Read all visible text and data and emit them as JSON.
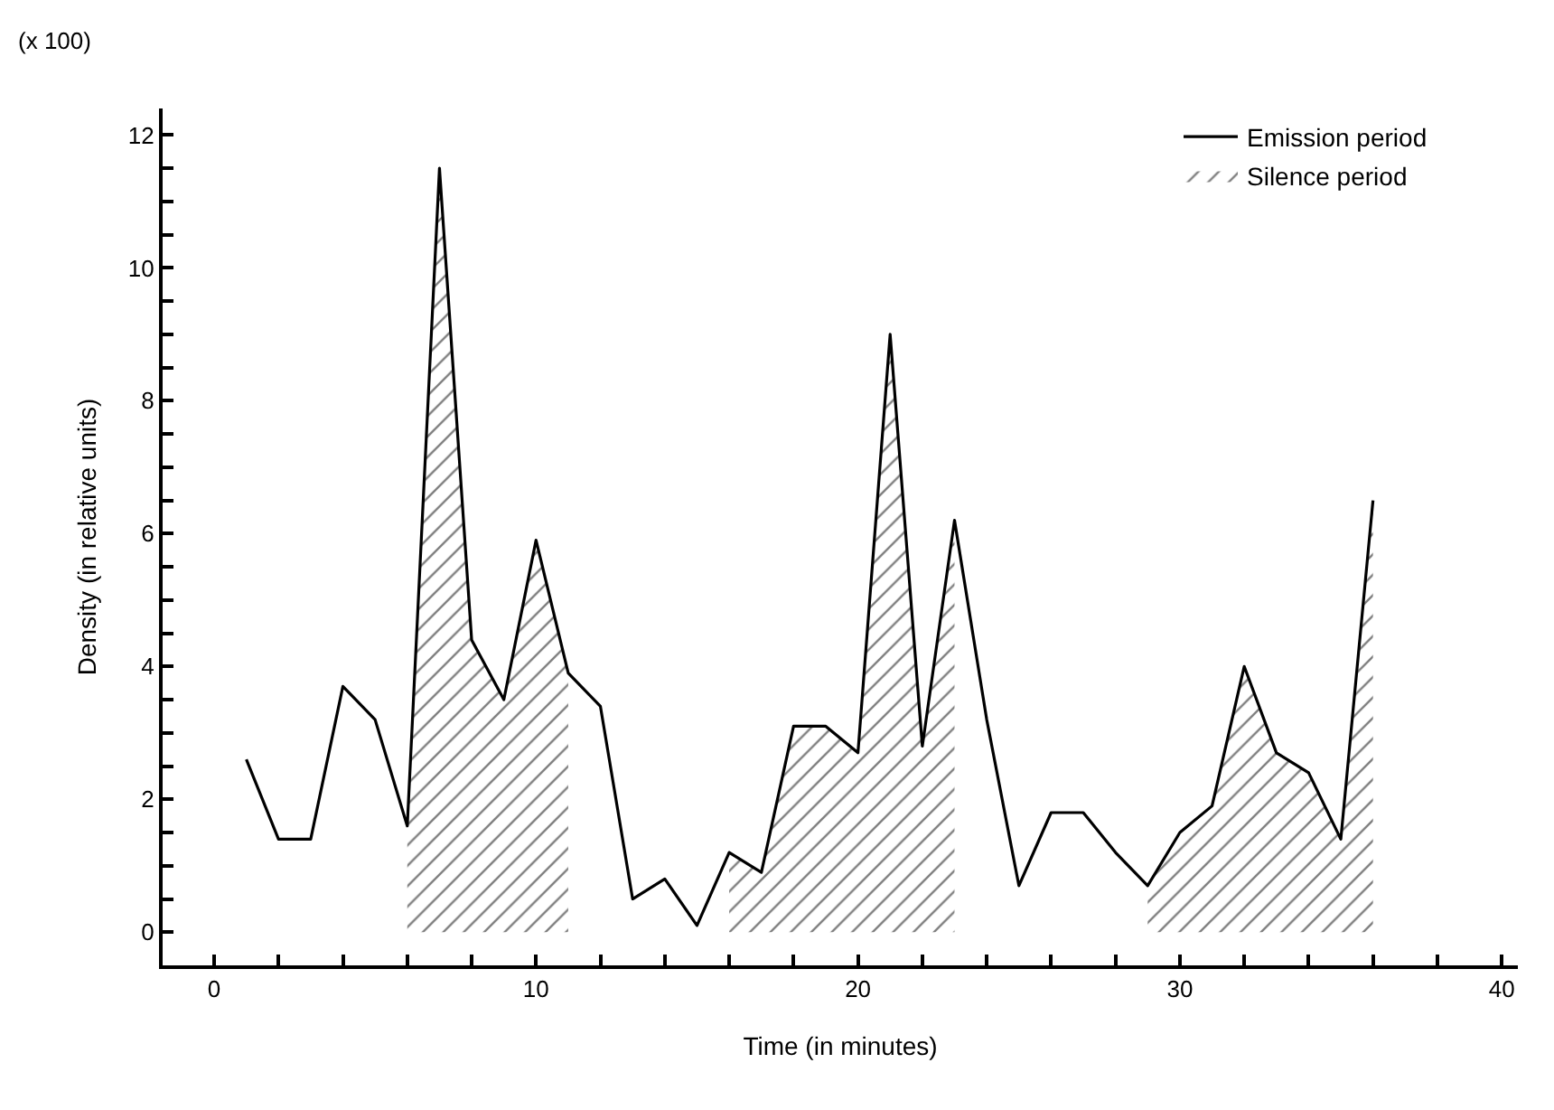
{
  "chart_data": {
    "type": "line",
    "xlabel": "Time (in minutes)",
    "ylabel": "Density (in relative units)",
    "annotations": [
      "(x 100)"
    ],
    "x": [
      1,
      2,
      3,
      4,
      5,
      6,
      7,
      8,
      9,
      10,
      11,
      12,
      13,
      14,
      15,
      16,
      17,
      18,
      19,
      20,
      21,
      22,
      23,
      24,
      25,
      26,
      27,
      28,
      29,
      30,
      31,
      32,
      33,
      34,
      35,
      36
    ],
    "series": [
      {
        "name": "Emission period",
        "color": "#000000",
        "values": [
          2.6,
          1.4,
          1.4,
          3.7,
          3.2,
          1.6,
          11.5,
          4.4,
          3.5,
          5.9,
          3.9,
          3.4,
          0.5,
          0.8,
          0.1,
          1.2,
          0.9,
          3.1,
          3.1,
          2.7,
          9.0,
          2.8,
          6.2,
          3.2,
          0.7,
          1.8,
          1.8,
          1.2,
          0.7,
          1.5,
          1.9,
          4.0,
          2.7,
          2.4,
          1.4,
          6.5
        ]
      },
      {
        "name": "Silence period",
        "color": "#000000",
        "type": "area",
        "x": [
          6,
          7,
          8,
          9,
          10,
          11
        ],
        "values": [
          1.6,
          11.5,
          4.4,
          3.5,
          5.9,
          3.9
        ]
      },
      {
        "color": "#000000",
        "type": "area",
        "x": [
          16,
          17,
          18,
          19,
          20,
          21,
          22,
          23
        ],
        "values": [
          1.2,
          0.9,
          3.1,
          3.1,
          2.7,
          9.0,
          2.8,
          6.2
        ]
      },
      {
        "color": "#000000",
        "type": "area",
        "x": [
          29,
          30,
          31,
          32,
          33,
          34,
          35,
          36
        ],
        "values": [
          0.7,
          1.5,
          1.9,
          4.0,
          2.7,
          2.4,
          1.4,
          6.5
        ]
      }
    ],
    "xlim": [
      -1.6,
      40.5
    ],
    "ylim": [
      -0.5,
      12.4
    ],
    "xticks": [
      0,
      {
        "value": 2,
        "label": null
      },
      {
        "value": 4,
        "label": null
      },
      {
        "value": 6,
        "label": null
      },
      {
        "value": 8,
        "label": null
      },
      10,
      {
        "value": 12,
        "label": null
      },
      {
        "value": 14,
        "label": null
      },
      {
        "value": 16,
        "label": null
      },
      {
        "value": 18,
        "label": null
      },
      20,
      {
        "value": 22,
        "label": null
      },
      {
        "value": 24,
        "label": null
      },
      {
        "value": 26,
        "label": null
      },
      {
        "value": 28,
        "label": null
      },
      30,
      {
        "value": 32,
        "label": null
      },
      {
        "value": 34,
        "label": null
      },
      {
        "value": 36,
        "label": null
      },
      {
        "value": 38,
        "label": null
      },
      40
    ],
    "yticks": [
      0,
      {
        "value": 0.5,
        "label": null
      },
      {
        "value": 1,
        "label": null
      },
      {
        "value": 1.5,
        "label": null
      },
      2,
      {
        "value": 2.5,
        "label": null
      },
      {
        "value": 3,
        "label": null
      },
      {
        "value": 3.5,
        "label": null
      },
      4,
      {
        "value": 4.5,
        "label": null
      },
      {
        "value": 5,
        "label": null
      },
      {
        "value": 5.5,
        "label": null
      },
      6,
      {
        "value": 6.5,
        "label": null
      },
      {
        "value": 7,
        "label": null
      },
      {
        "value": 7.5,
        "label": null
      },
      8,
      {
        "value": 8.5,
        "label": null
      },
      {
        "value": 9,
        "label": null
      },
      {
        "value": 9.5,
        "label": null
      },
      10,
      {
        "value": 10.5,
        "label": null
      },
      {
        "value": 11,
        "label": null
      },
      {
        "value": 11.5,
        "label": null
      },
      12
    ],
    "legend": "top right",
    "marker": "none",
    "line_style": "solid"
  }
}
